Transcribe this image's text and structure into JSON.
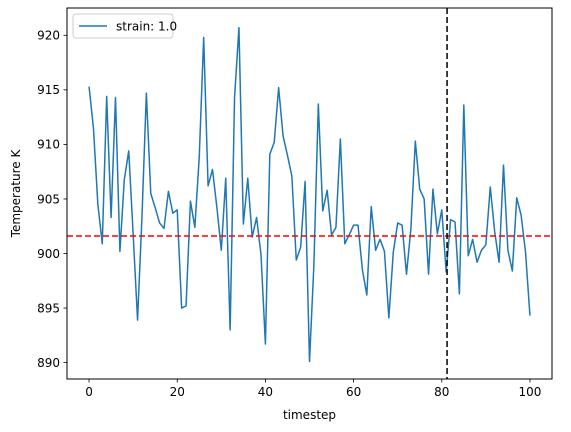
{
  "chart_data": {
    "type": "line",
    "title": "",
    "xlabel": "timestep",
    "ylabel": "Temperature K",
    "xlim": [
      -5,
      105
    ],
    "ylim": [
      888.5,
      922.5
    ],
    "xticks": [
      0,
      20,
      40,
      60,
      80,
      100
    ],
    "yticks": [
      890,
      895,
      900,
      905,
      910,
      915,
      920
    ],
    "grid": false,
    "legend": "top-left",
    "series": [
      {
        "name": "strain: 1.0",
        "color": "#1f77b4",
        "x": [
          0,
          1,
          2,
          3,
          4,
          5,
          6,
          7,
          8,
          9,
          10,
          11,
          12,
          13,
          14,
          15,
          16,
          17,
          18,
          19,
          20,
          21,
          22,
          23,
          24,
          25,
          26,
          27,
          28,
          29,
          30,
          31,
          32,
          33,
          34,
          35,
          36,
          37,
          38,
          39,
          40,
          41,
          42,
          43,
          44,
          45,
          46,
          47,
          48,
          49,
          50,
          51,
          52,
          53,
          54,
          55,
          56,
          57,
          58,
          59,
          60,
          61,
          62,
          63,
          64,
          65,
          66,
          67,
          68,
          69,
          70,
          71,
          72,
          73,
          74,
          75,
          76,
          77,
          78,
          79,
          80,
          81,
          82,
          83,
          84,
          85,
          86,
          87,
          88,
          89,
          90,
          91,
          92,
          93,
          94,
          95,
          96,
          97,
          98,
          99,
          100
        ],
        "values": [
          915.3,
          911.5,
          904.5,
          900.9,
          914.4,
          903.3,
          914.3,
          900.2,
          906.8,
          909.4,
          901.8,
          893.9,
          903.3,
          914.7,
          905.5,
          904.2,
          902.8,
          902.3,
          905.7,
          903.7,
          904.0,
          895.0,
          895.2,
          904.8,
          902.4,
          908.9,
          919.8,
          906.2,
          907.7,
          904.2,
          900.3,
          906.9,
          893.0,
          914.3,
          920.7,
          902.7,
          906.9,
          901.5,
          903.3,
          899.9,
          891.7,
          909.1,
          910.2,
          915.2,
          910.8,
          909.0,
          907.1,
          899.4,
          900.6,
          906.6,
          890.1,
          899.0,
          913.7,
          903.9,
          905.8,
          901.7,
          902.4,
          910.5,
          900.9,
          901.7,
          902.6,
          902.6,
          898.5,
          896.2,
          904.3,
          900.3,
          901.3,
          900.2,
          894.1,
          900.1,
          902.8,
          902.6,
          898.1,
          902.3,
          910.3,
          905.9,
          905.0,
          898.1,
          905.9,
          901.8,
          904.0,
          898.3,
          903.1,
          902.9,
          896.3,
          913.6,
          899.8,
          901.3,
          899.2,
          900.3,
          900.8,
          906.1,
          902.0,
          899.2,
          908.1,
          900.3,
          898.4,
          905.1,
          903.5,
          900.1,
          894.3
        ]
      }
    ],
    "reference_lines": [
      {
        "orientation": "horizontal",
        "value": 901.6,
        "color": "#ff0000",
        "style": "dashed"
      },
      {
        "orientation": "vertical",
        "value": 81.2,
        "color": "#000000",
        "style": "dashed"
      }
    ]
  }
}
